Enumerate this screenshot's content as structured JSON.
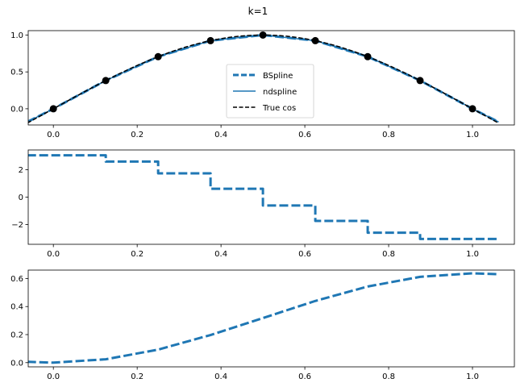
{
  "figure_title": "k=1",
  "colors": {
    "bspline": "#1f77b4",
    "ndspline": "#1f77b4",
    "truecos": "#000000",
    "knots": "#000000"
  },
  "chart_data": [
    {
      "type": "line",
      "title": "",
      "xlabel": "",
      "ylabel": "",
      "xlim": [
        -0.06,
        1.1
      ],
      "ylim": [
        -0.22,
        1.06
      ],
      "xticks": [
        0.0,
        0.2,
        0.4,
        0.6,
        0.8,
        1.0
      ],
      "xtick_labels": [
        "0.0",
        "0.2",
        "0.4",
        "0.6",
        "0.8",
        "1.0"
      ],
      "yticks": [
        0.0,
        0.5,
        1.0
      ],
      "ytick_labels": [
        "0.0",
        "0.5",
        "1.0"
      ],
      "legend": {
        "placement": "center-bottom",
        "entries": [
          "BSpline",
          "ndspline",
          "True cos"
        ]
      },
      "series": [
        {
          "name": "BSpline",
          "style": "dashed-thick",
          "x": [
            -0.0625,
            0.0,
            0.125,
            0.25,
            0.375,
            0.5,
            0.625,
            0.75,
            0.875,
            1.0,
            1.0625
          ],
          "y": [
            -0.18,
            0.0,
            0.383,
            0.707,
            0.924,
            1.0,
            0.924,
            0.707,
            0.383,
            0.0,
            -0.18
          ]
        },
        {
          "name": "ndspline",
          "style": "solid",
          "x": [
            -0.0625,
            0.0,
            0.125,
            0.25,
            0.375,
            0.5,
            0.625,
            0.75,
            0.875,
            1.0,
            1.0625
          ],
          "y": [
            -0.18,
            0.0,
            0.383,
            0.707,
            0.924,
            1.0,
            0.924,
            0.707,
            0.383,
            0.0,
            -0.18
          ]
        },
        {
          "name": "True cos",
          "style": "dashed-black",
          "function": "sin(pi*x)",
          "x_range": [
            -0.0625,
            1.0625
          ]
        }
      ],
      "knots": {
        "x": [
          0.0,
          0.125,
          0.25,
          0.375,
          0.5,
          0.625,
          0.75,
          0.875,
          1.0
        ],
        "y": [
          0.0,
          0.383,
          0.707,
          0.924,
          1.0,
          0.924,
          0.707,
          0.383,
          0.0
        ]
      }
    },
    {
      "type": "line",
      "title": "",
      "xlabel": "",
      "ylabel": "",
      "xlim": [
        -0.06,
        1.1
      ],
      "ylim": [
        -3.45,
        3.45
      ],
      "xticks": [
        0.0,
        0.2,
        0.4,
        0.6,
        0.8,
        1.0
      ],
      "xtick_labels": [
        "0.0",
        "0.2",
        "0.4",
        "0.6",
        "0.8",
        "1.0"
      ],
      "yticks": [
        -2,
        0,
        2
      ],
      "ytick_labels": [
        "−2",
        "0",
        "2"
      ],
      "series": [
        {
          "name": "BSpline",
          "style": "step",
          "bins": [
            -0.0625,
            0.125,
            0.25,
            0.375,
            0.5,
            0.625,
            0.75,
            0.875,
            1.0625
          ],
          "values": [
            3.06,
            2.6,
            1.74,
            0.61,
            -0.61,
            -1.74,
            -2.6,
            -3.06
          ]
        }
      ]
    },
    {
      "type": "line",
      "title": "",
      "xlabel": "",
      "ylabel": "",
      "xlim": [
        -0.06,
        1.1
      ],
      "ylim": [
        -0.03,
        0.66
      ],
      "xticks": [
        0.0,
        0.2,
        0.4,
        0.6,
        0.8,
        1.0
      ],
      "xtick_labels": [
        "0.0",
        "0.2",
        "0.4",
        "0.6",
        "0.8",
        "1.0"
      ],
      "yticks": [
        0.0,
        0.2,
        0.4,
        0.6
      ],
      "ytick_labels": [
        "0.0",
        "0.2",
        "0.4",
        "0.6"
      ],
      "series": [
        {
          "name": "BSpline",
          "style": "dashed-thick",
          "x": [
            -0.0625,
            0.0,
            0.125,
            0.25,
            0.375,
            0.5,
            0.625,
            0.75,
            0.875,
            1.0,
            1.0625
          ],
          "y": [
            0.006,
            0.0,
            0.024,
            0.093,
            0.197,
            0.318,
            0.44,
            0.543,
            0.612,
            0.637,
            0.631
          ]
        }
      ]
    }
  ]
}
